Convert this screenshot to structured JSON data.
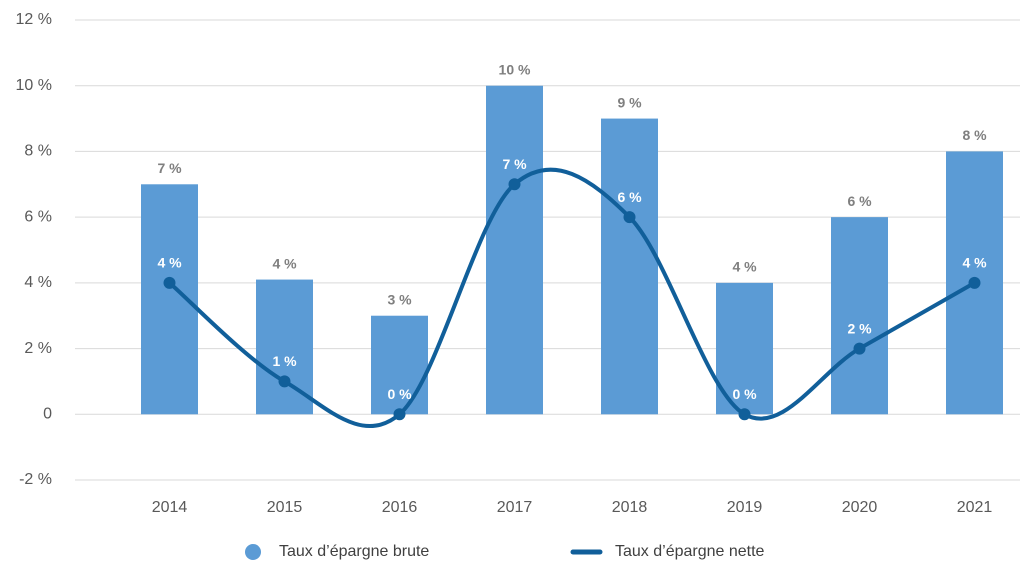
{
  "chart_data": {
    "type": "bar",
    "categories": [
      "2014",
      "2015",
      "2016",
      "2017",
      "2018",
      "2019",
      "2020",
      "2021"
    ],
    "series": [
      {
        "name": "Taux d’épargne brute",
        "type": "bar",
        "color": "#5b9bd5",
        "values": [
          7,
          4.1,
          3,
          10,
          9,
          4,
          6,
          8
        ],
        "value_labels": [
          "7 %",
          "4 %",
          "3 %",
          "10 %",
          "9 %",
          "4 %",
          "6 %",
          "8 %"
        ]
      },
      {
        "name": "Taux d’épargne nette",
        "type": "line",
        "color": "#115f9a",
        "values": [
          4,
          1,
          0,
          7,
          6,
          0,
          2,
          4
        ],
        "value_labels": [
          "4 %",
          "1 %",
          "0 %",
          "7 %",
          "6 %",
          "0 %",
          "2 %",
          "4 %"
        ]
      }
    ],
    "ylim": [
      -2,
      12
    ],
    "yticks": [
      {
        "value": -2,
        "label": "-2 %"
      },
      0,
      {
        "value": 2,
        "label": "2 %"
      },
      {
        "value": 4,
        "label": "4 %"
      },
      {
        "value": 6,
        "label": "6 %"
      },
      {
        "value": 8,
        "label": "8 %"
      },
      {
        "value": 10,
        "label": "10 %"
      },
      {
        "value": 12,
        "label": "12 %"
      }
    ],
    "grid": true,
    "legend": "bottom"
  }
}
